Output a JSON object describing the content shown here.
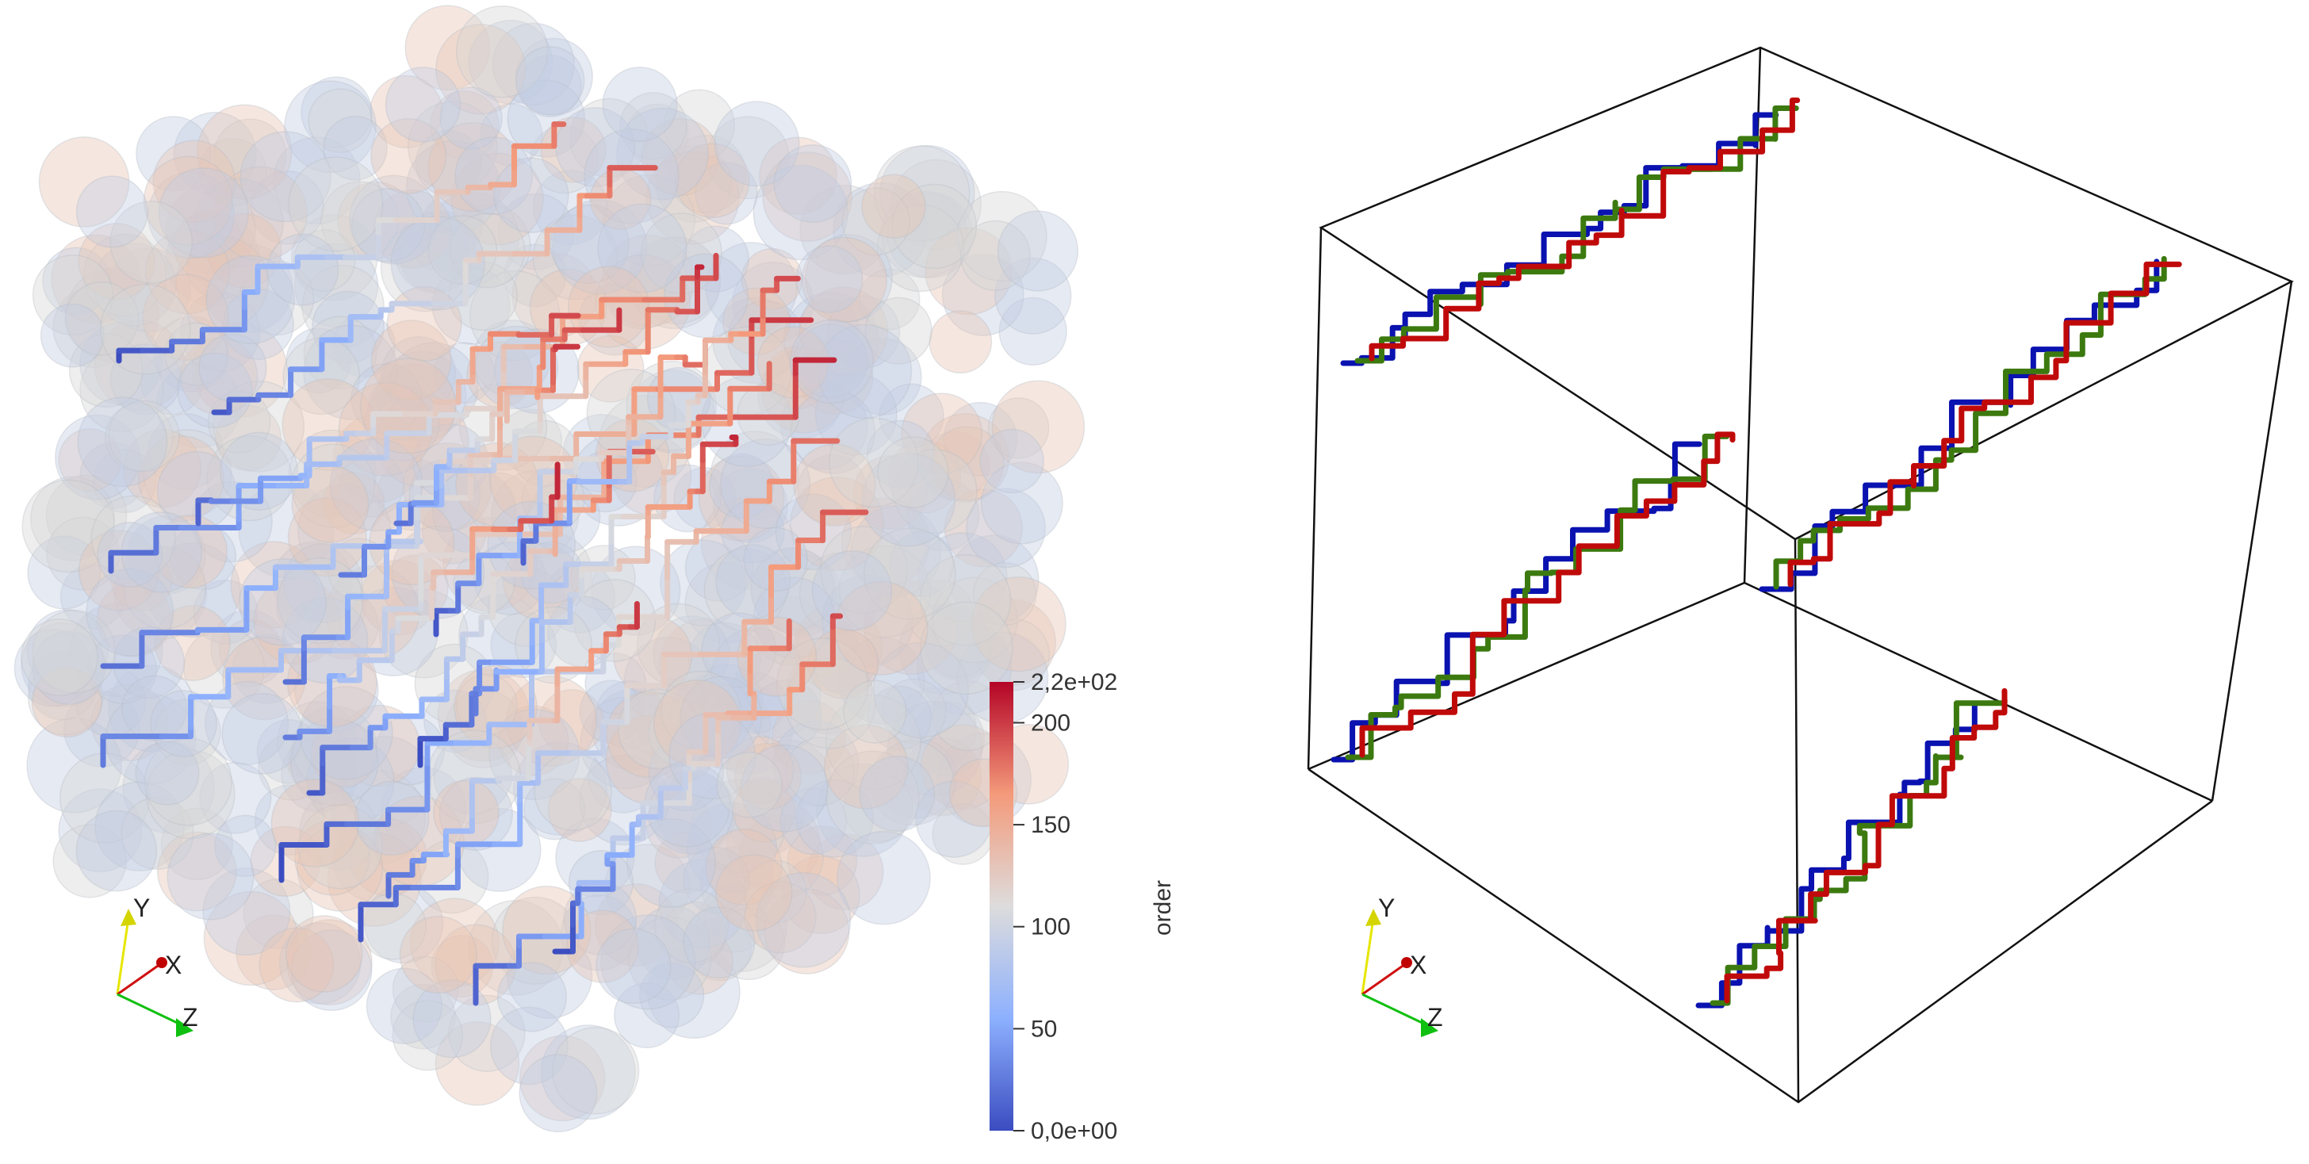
{
  "left_view": {
    "colorbar": {
      "title": "order",
      "tick_labels": [
        "2,2e+02",
        "200",
        "150",
        "100",
        "50",
        "0,0e+00"
      ],
      "tick_values": [
        220,
        200,
        150,
        100,
        50,
        0
      ],
      "range": [
        0,
        220
      ],
      "colors": [
        "#3b4cc0",
        "#8db0fe",
        "#dddcdc",
        "#f49a7b",
        "#b40426"
      ]
    },
    "axes": {
      "x": "X",
      "y": "Y",
      "z": "Z"
    }
  },
  "right_view": {
    "path_colors": {
      "blue": "#0a12b0",
      "green": "#3c7a10",
      "red": "#c00a0a"
    },
    "axes": {
      "x": "X",
      "y": "Y",
      "z": "Z"
    }
  },
  "axis_colors": {
    "x": "#d01010",
    "y": "#e6e600",
    "z": "#10c010"
  }
}
